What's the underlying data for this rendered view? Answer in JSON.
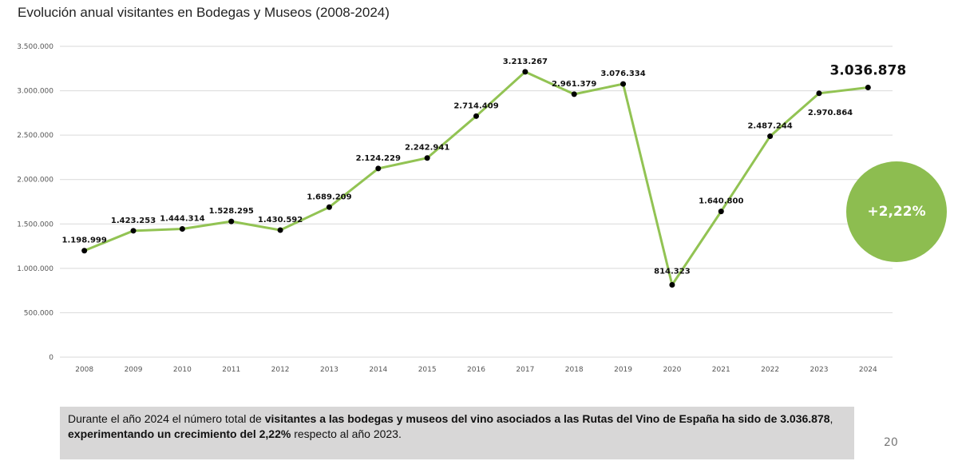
{
  "chart_data": {
    "type": "line",
    "title": "Evolución anual visitantes en Bodegas y Museos (2008-2024)",
    "xlabel": "",
    "ylabel": "",
    "categories": [
      "2008",
      "2009",
      "2010",
      "2011",
      "2012",
      "2013",
      "2014",
      "2015",
      "2016",
      "2017",
      "2018",
      "2019",
      "2020",
      "2021",
      "2022",
      "2023",
      "2024"
    ],
    "values": [
      1198999,
      1423253,
      1444314,
      1528295,
      1430592,
      1689209,
      2124229,
      2242941,
      2714409,
      3213267,
      2961379,
      3076334,
      814323,
      1640800,
      2487244,
      2970864,
      3036878
    ],
    "data_labels": [
      "1.198.999",
      "1.423.253",
      "1.444.314",
      "1.528.295",
      "1.430.592",
      "1.689.209",
      "2.124.229",
      "2.242.941",
      "2.714.409",
      "3.213.267",
      "2.961.379",
      "3.076.334",
      "814.323",
      "1.640.800",
      "2.487.244",
      "2.970.864",
      "3.036.878"
    ],
    "yticks": [
      0,
      500000,
      1000000,
      1500000,
      2000000,
      2500000,
      3000000,
      3500000
    ],
    "ytick_labels": [
      "0",
      "500.000",
      "1.000.000",
      "1.500.000",
      "2.000.000",
      "2.500.000",
      "3.000.000",
      "3.500.000"
    ],
    "ylim": [
      0,
      3500000
    ],
    "grid": true,
    "line_color": "#92c353"
  },
  "badge": {
    "text": "+2,22%",
    "color": "#8dbd50"
  },
  "caption": {
    "p1": "Durante el año 2024 el número total de ",
    "b1": "visitantes a las bodegas y museos del vino asociados a las Rutas del Vino de España ha sido de 3.036.878",
    "p2": ", ",
    "b2": "experimentando un crecimiento del 2,22%",
    "p3": " respecto al año 2023."
  },
  "page_number": "20"
}
